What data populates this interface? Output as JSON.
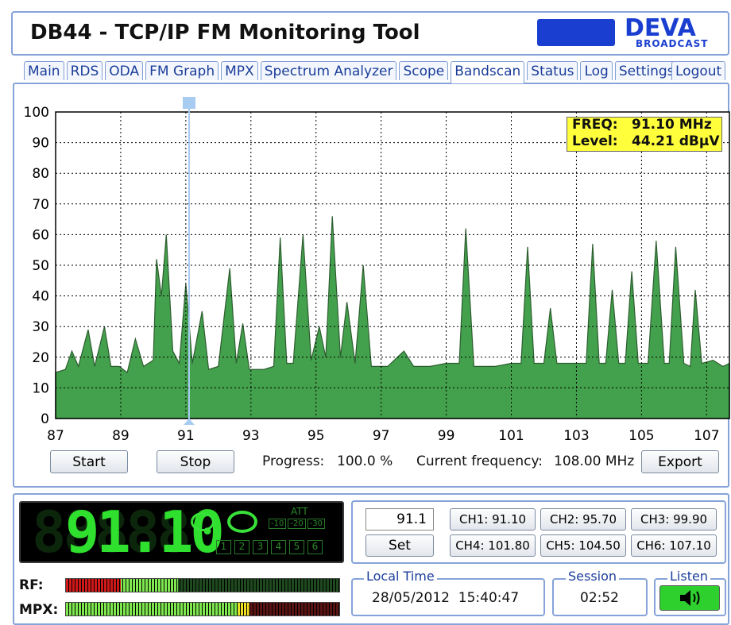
{
  "header": {
    "title": "DB44 - TCP/IP FM Monitoring Tool",
    "logo": "DEVA",
    "logo_sub": "BROADCAST"
  },
  "tabs": [
    "Main",
    "RDS",
    "ODA",
    "FM Graph",
    "MPX",
    "Spectrum Analyzer",
    "Scope",
    "Bandscan",
    "Status",
    "Log",
    "Settings"
  ],
  "active_tab": 7,
  "logout": "Logout",
  "bandscan": {
    "type": "area",
    "xlim": [
      87,
      107.7
    ],
    "ylim": [
      0,
      100
    ],
    "xticks": [
      87,
      89,
      91,
      93,
      95,
      97,
      99,
      101,
      103,
      105,
      107
    ],
    "yticks": [
      0,
      10,
      20,
      30,
      40,
      50,
      60,
      70,
      80,
      90,
      100
    ],
    "grid": true,
    "color": "#43a04c",
    "x": [
      87.0,
      87.3,
      87.5,
      87.7,
      88.0,
      88.2,
      88.5,
      88.7,
      88.95,
      89.2,
      89.45,
      89.7,
      90.0,
      90.1,
      90.25,
      90.4,
      90.6,
      90.8,
      91.0,
      91.2,
      91.5,
      91.7,
      92.0,
      92.35,
      92.55,
      92.75,
      92.95,
      93.4,
      93.7,
      93.9,
      94.1,
      94.3,
      94.6,
      94.85,
      95.1,
      95.3,
      95.5,
      95.75,
      95.95,
      96.2,
      96.45,
      96.7,
      97.2,
      97.7,
      98.0,
      98.5,
      99.0,
      99.4,
      99.6,
      99.85,
      100.5,
      101.0,
      101.3,
      101.5,
      101.7,
      102.0,
      102.2,
      102.4,
      103.0,
      103.3,
      103.5,
      103.7,
      103.9,
      104.1,
      104.3,
      104.5,
      104.7,
      104.9,
      105.2,
      105.45,
      105.7,
      105.85,
      106.05,
      106.3,
      106.5,
      106.65,
      106.85,
      107.2,
      107.5,
      107.7
    ],
    "values": [
      15,
      16,
      22,
      17,
      29,
      17,
      30,
      17,
      17,
      15,
      26,
      17,
      19,
      52,
      40,
      60,
      22,
      18,
      44,
      18,
      35,
      16,
      17,
      49,
      18,
      31,
      16,
      16,
      17,
      59,
      18,
      18,
      60,
      19,
      30,
      20,
      66,
      20,
      38,
      18,
      50,
      17,
      17,
      22,
      17,
      17,
      18,
      18,
      62,
      17,
      17,
      18,
      18,
      56,
      18,
      18,
      36,
      18,
      18,
      18,
      57,
      18,
      18,
      42,
      18,
      18,
      48,
      18,
      18,
      58,
      18,
      18,
      56,
      18,
      17,
      42,
      18,
      19,
      17,
      18
    ],
    "cursor": 91.1,
    "info": {
      "freq_label": "FREQ:",
      "freq": "91.10 MHz",
      "level_label": "Level:",
      "level": "44.21 dBµV"
    }
  },
  "controls": {
    "start": "Start",
    "stop": "Stop",
    "progress_label": "Progress:",
    "progress": "100.0 %",
    "current_label": "Current frequency:",
    "current": "108.00 MHz",
    "export": "Export"
  },
  "display": {
    "frequency": "91.10",
    "att": "ATT",
    "att_levels": [
      "-10",
      "-20",
      "-30"
    ],
    "presets": [
      "1",
      "2",
      "3",
      "4",
      "5",
      "6"
    ]
  },
  "meters": {
    "rf": "RF:",
    "mpx": "MPX:"
  },
  "tuning": {
    "input": "91.1",
    "set": "Set",
    "channels": [
      "CH1: 91.10",
      "CH2: 95.70",
      "CH3: 99.90",
      "CH4: 101.80",
      "CH5: 104.50",
      "CH6: 107.10"
    ]
  },
  "local_time": {
    "label": "Local Time",
    "value": "28/05/2012  15:40:47"
  },
  "session": {
    "label": "Session",
    "value": "02:52"
  },
  "listen": {
    "label": "Listen"
  }
}
